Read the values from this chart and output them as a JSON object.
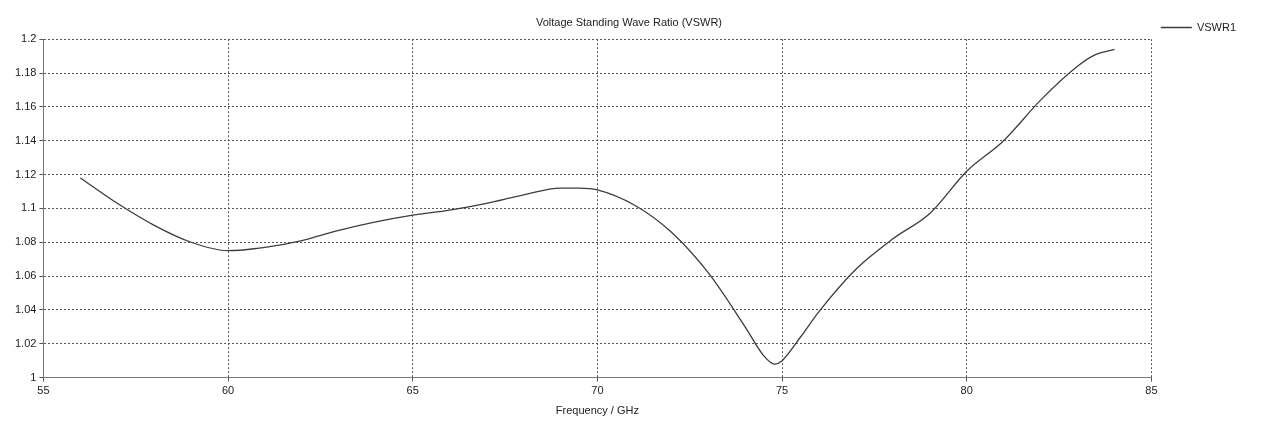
{
  "chart_data": {
    "type": "line",
    "title": "Voltage Standing Wave Ratio (VSWR)",
    "xlabel": "Frequency / GHz",
    "x": [
      56,
      57,
      58,
      59,
      60,
      61,
      62,
      63,
      64,
      65,
      66,
      67,
      68,
      69,
      69.5,
      70,
      71,
      72,
      73,
      74,
      74.5,
      74.8,
      75,
      75.5,
      76,
      77,
      78,
      79,
      80,
      81,
      82,
      83,
      83.5,
      84
    ],
    "series": [
      {
        "name": "VSWR1",
        "color": "#3c3c3c",
        "values": [
          1.118,
          1.103,
          1.09,
          1.08,
          1.075,
          1.077,
          1.081,
          1.087,
          1.092,
          1.096,
          1.099,
          1.103,
          1.108,
          1.112,
          1.112,
          1.111,
          1.102,
          1.086,
          1.062,
          1.03,
          1.013,
          1.008,
          1.01,
          1.024,
          1.039,
          1.064,
          1.082,
          1.097,
          1.122,
          1.14,
          1.164,
          1.184,
          1.191,
          1.194
        ]
      }
    ],
    "xlim": [
      55,
      85
    ],
    "xticks": [
      55,
      60,
      65,
      70,
      75,
      80,
      85
    ],
    "ylim": [
      1,
      1.2
    ],
    "yticks": [
      1,
      1.02,
      1.04,
      1.06,
      1.08,
      1.1,
      1.12,
      1.14,
      1.16,
      1.18,
      1.2
    ],
    "grid": true,
    "legend": "top right",
    "marker": "none",
    "line_style": "solid"
  }
}
